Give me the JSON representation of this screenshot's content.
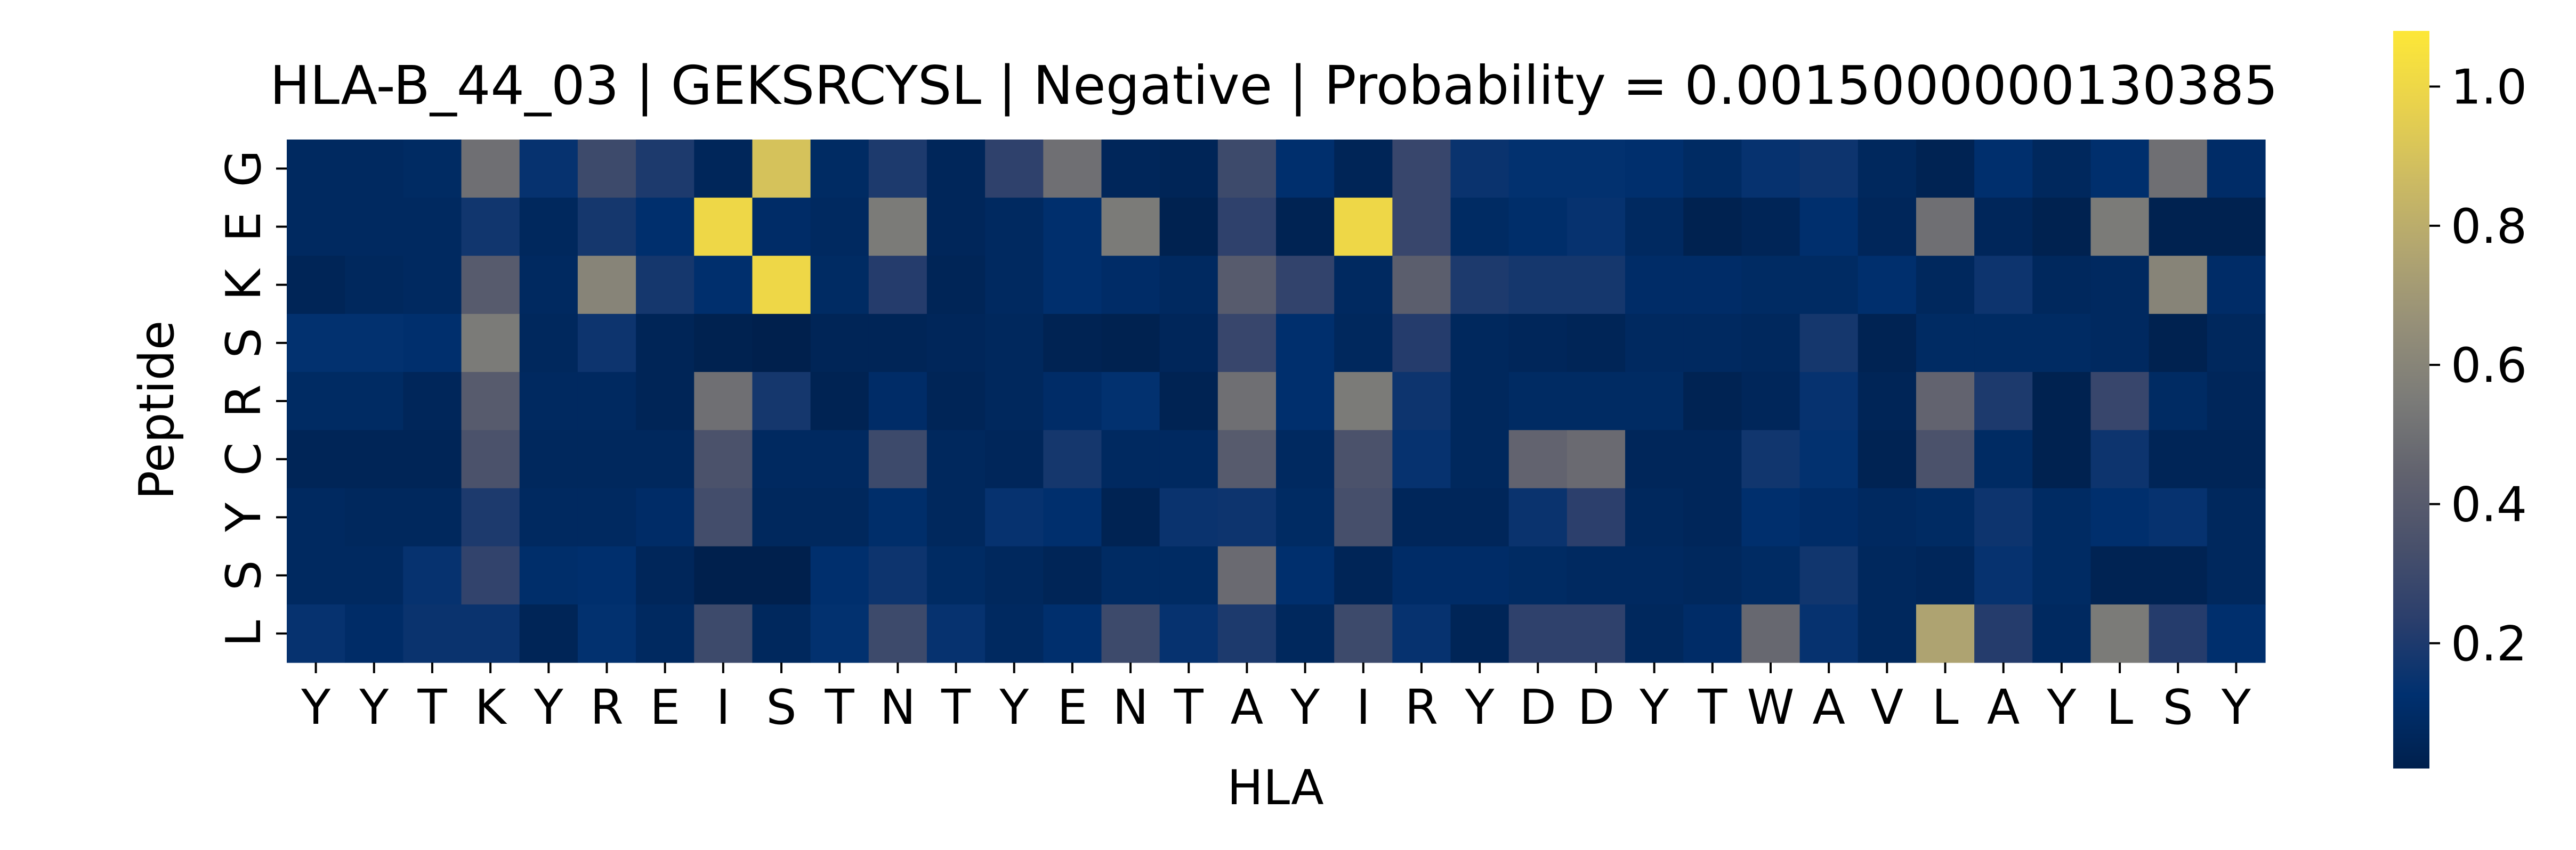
{
  "chart_data": {
    "type": "heatmap",
    "title": "HLA-B_44_03 | GEKSRCYSL | Negative | Probability = 0.0015000000130385",
    "xlabel": "HLA",
    "ylabel": "Peptide",
    "x_categories": [
      "Y",
      "Y",
      "T",
      "K",
      "Y",
      "R",
      "E",
      "I",
      "S",
      "T",
      "N",
      "T",
      "Y",
      "E",
      "N",
      "T",
      "A",
      "Y",
      "I",
      "R",
      "Y",
      "D",
      "D",
      "Y",
      "T",
      "W",
      "A",
      "V",
      "L",
      "A",
      "Y",
      "L",
      "S",
      "Y"
    ],
    "y_categories": [
      "G",
      "E",
      "K",
      "S",
      "R",
      "C",
      "Y",
      "S",
      "L"
    ],
    "values": [
      [
        0.08,
        0.08,
        0.09,
        0.5,
        0.14,
        0.3,
        0.2,
        0.06,
        0.9,
        0.09,
        0.2,
        0.06,
        0.25,
        0.5,
        0.06,
        0.05,
        0.3,
        0.12,
        0.05,
        0.28,
        0.15,
        0.13,
        0.13,
        0.12,
        0.09,
        0.14,
        0.16,
        0.07,
        0.04,
        0.12,
        0.07,
        0.12,
        0.5,
        0.1
      ],
      [
        0.08,
        0.08,
        0.08,
        0.17,
        0.07,
        0.18,
        0.12,
        1.0,
        0.1,
        0.08,
        0.55,
        0.06,
        0.08,
        0.12,
        0.55,
        0.03,
        0.25,
        0.04,
        1.0,
        0.28,
        0.09,
        0.11,
        0.14,
        0.08,
        0.03,
        0.05,
        0.12,
        0.06,
        0.5,
        0.06,
        0.03,
        0.55,
        0.03,
        0.03
      ],
      [
        0.05,
        0.07,
        0.08,
        0.4,
        0.08,
        0.6,
        0.18,
        0.12,
        1.0,
        0.09,
        0.22,
        0.05,
        0.08,
        0.12,
        0.1,
        0.08,
        0.4,
        0.26,
        0.08,
        0.42,
        0.2,
        0.18,
        0.18,
        0.1,
        0.1,
        0.09,
        0.09,
        0.12,
        0.07,
        0.16,
        0.07,
        0.08,
        0.6,
        0.1
      ],
      [
        0.13,
        0.13,
        0.12,
        0.55,
        0.07,
        0.16,
        0.05,
        0.03,
        0.02,
        0.05,
        0.05,
        0.06,
        0.07,
        0.04,
        0.03,
        0.06,
        0.28,
        0.12,
        0.07,
        0.22,
        0.07,
        0.06,
        0.05,
        0.08,
        0.08,
        0.07,
        0.18,
        0.04,
        0.09,
        0.09,
        0.09,
        0.08,
        0.03,
        0.07
      ],
      [
        0.09,
        0.09,
        0.06,
        0.4,
        0.08,
        0.08,
        0.05,
        0.5,
        0.18,
        0.04,
        0.1,
        0.05,
        0.07,
        0.1,
        0.13,
        0.04,
        0.5,
        0.12,
        0.55,
        0.16,
        0.07,
        0.09,
        0.09,
        0.09,
        0.04,
        0.06,
        0.14,
        0.05,
        0.45,
        0.2,
        0.03,
        0.28,
        0.09,
        0.06
      ],
      [
        0.05,
        0.05,
        0.05,
        0.35,
        0.07,
        0.07,
        0.07,
        0.35,
        0.08,
        0.08,
        0.3,
        0.07,
        0.06,
        0.18,
        0.08,
        0.08,
        0.4,
        0.08,
        0.35,
        0.14,
        0.07,
        0.45,
        0.48,
        0.06,
        0.06,
        0.17,
        0.13,
        0.04,
        0.35,
        0.09,
        0.03,
        0.16,
        0.05,
        0.05
      ],
      [
        0.08,
        0.07,
        0.07,
        0.2,
        0.08,
        0.08,
        0.1,
        0.32,
        0.07,
        0.07,
        0.11,
        0.07,
        0.14,
        0.12,
        0.04,
        0.15,
        0.16,
        0.09,
        0.33,
        0.06,
        0.06,
        0.15,
        0.24,
        0.07,
        0.06,
        0.12,
        0.1,
        0.08,
        0.09,
        0.16,
        0.09,
        0.12,
        0.14,
        0.07
      ],
      [
        0.08,
        0.08,
        0.14,
        0.26,
        0.11,
        0.12,
        0.06,
        0.02,
        0.02,
        0.12,
        0.16,
        0.09,
        0.07,
        0.05,
        0.09,
        0.09,
        0.48,
        0.12,
        0.05,
        0.1,
        0.1,
        0.09,
        0.08,
        0.08,
        0.07,
        0.09,
        0.17,
        0.07,
        0.06,
        0.14,
        0.09,
        0.04,
        0.04,
        0.07
      ],
      [
        0.14,
        0.1,
        0.15,
        0.15,
        0.05,
        0.13,
        0.08,
        0.3,
        0.07,
        0.13,
        0.3,
        0.14,
        0.08,
        0.12,
        0.3,
        0.14,
        0.2,
        0.07,
        0.3,
        0.14,
        0.05,
        0.25,
        0.25,
        0.07,
        0.1,
        0.47,
        0.14,
        0.07,
        0.75,
        0.22,
        0.08,
        0.55,
        0.22,
        0.12
      ]
    ],
    "colorbar": {
      "colormap": "cividis",
      "vmin": 0.02,
      "vmax": 1.08,
      "ticks": [
        0.2,
        0.4,
        0.6,
        0.8,
        1.0
      ],
      "tick_labels": [
        "0.2",
        "0.4",
        "0.6",
        "0.8",
        "1.0"
      ]
    },
    "grid": false,
    "legend": "colorbar-right"
  }
}
